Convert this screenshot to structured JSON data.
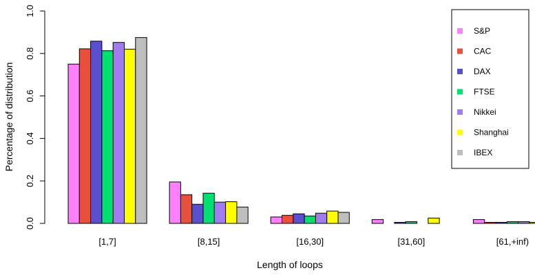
{
  "chart_data": {
    "type": "bar",
    "xlabel": "Length of loops",
    "ylabel": "Percentage of distribution",
    "ylim": [
      0,
      1
    ],
    "yticks": [
      "0.0",
      "0.2",
      "0.4",
      "0.6",
      "0.8",
      "1.0"
    ],
    "categories": [
      "[1,7]",
      "[8,15]",
      "[16,30]",
      "[31,60]",
      "[61,+inf)"
    ],
    "series": [
      {
        "name": "S&P",
        "color": "#ff80ff",
        "values": [
          0.75,
          0.195,
          0.03,
          0.018,
          0.018
        ]
      },
      {
        "name": "CAC",
        "color": "#e8503c",
        "values": [
          0.822,
          0.135,
          0.038,
          0.0,
          0.005
        ]
      },
      {
        "name": "DAX",
        "color": "#5a4fcf",
        "values": [
          0.858,
          0.09,
          0.045,
          0.005,
          0.005
        ]
      },
      {
        "name": "FTSE",
        "color": "#00e070",
        "values": [
          0.813,
          0.142,
          0.035,
          0.008,
          0.008
        ]
      },
      {
        "name": "Nikkei",
        "color": "#a07cf0",
        "values": [
          0.852,
          0.1,
          0.048,
          0.0,
          0.008
        ]
      },
      {
        "name": "Shanghai",
        "color": "#ffff00",
        "values": [
          0.82,
          0.102,
          0.058,
          0.025,
          0.005
        ]
      },
      {
        "name": "IBEX",
        "color": "#bebebe",
        "values": [
          0.875,
          0.077,
          0.052,
          0.0,
          0.005
        ]
      }
    ],
    "legend_position": "top-right",
    "grid": false
  }
}
